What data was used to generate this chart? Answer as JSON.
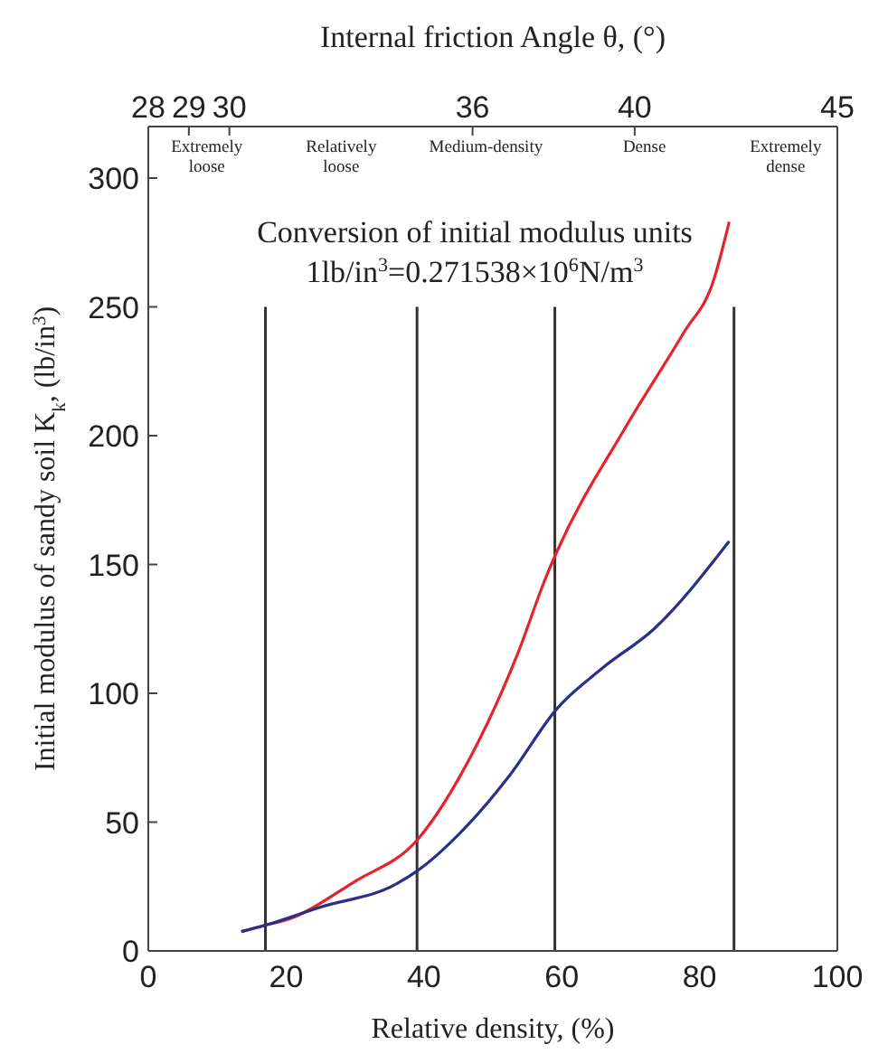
{
  "chart_data": {
    "type": "line",
    "xlabel": "Relative density, (%)",
    "ylabel": "Initial modulus of sandy soil K$_{k}$, (lb/in$^{3}$)",
    "x2label": "Internal friction Angle θ, (°)",
    "xlim": [
      0,
      100
    ],
    "xticks": [
      0,
      20,
      40,
      60,
      80,
      100
    ],
    "x2lim": [
      28,
      45
    ],
    "x2ticks": [
      28,
      29,
      30,
      36,
      40,
      45
    ],
    "ylim": [
      0,
      320
    ],
    "yticks": [
      0,
      50,
      100,
      150,
      200,
      250,
      300
    ],
    "marker": "none",
    "line_style": "solid",
    "series": [
      {
        "color": "#e8222a",
        "x": [
          13.5,
          17,
          20,
          30,
          39,
          46.7,
          53.7,
          57.7,
          59.3,
          69.2,
          77.7,
          82,
          84.3
        ],
        "values": [
          7.5,
          10,
          12,
          27,
          43,
          75,
          116,
          145,
          155,
          203,
          240,
          260,
          283
        ]
      },
      {
        "color": "#2a2f8a",
        "x": [
          13.5,
          17,
          25,
          36,
          39,
          46.4,
          52.4,
          59.3,
          66,
          73.4,
          84.3
        ],
        "values": [
          7.5,
          10,
          17,
          26,
          31,
          49,
          68,
          94,
          110,
          125,
          159
        ]
      }
    ],
    "ref_lines": [
      {
        "axis": "x",
        "value": 17,
        "color": "#333333"
      },
      {
        "axis": "x",
        "value": 39,
        "color": "#333333"
      },
      {
        "axis": "x",
        "value": 59,
        "color": "#333333"
      },
      {
        "axis": "x",
        "value": 85,
        "color": "#333333"
      }
    ],
    "annotations": [
      "Extremely loose",
      "Relatively loose",
      "Medium-density",
      "Dense",
      "Extremely dense",
      "Conversion of initial modulus units",
      "1lb/in$^{3}$=0.271538×10$^{6}$N/m$^{3}$"
    ]
  }
}
